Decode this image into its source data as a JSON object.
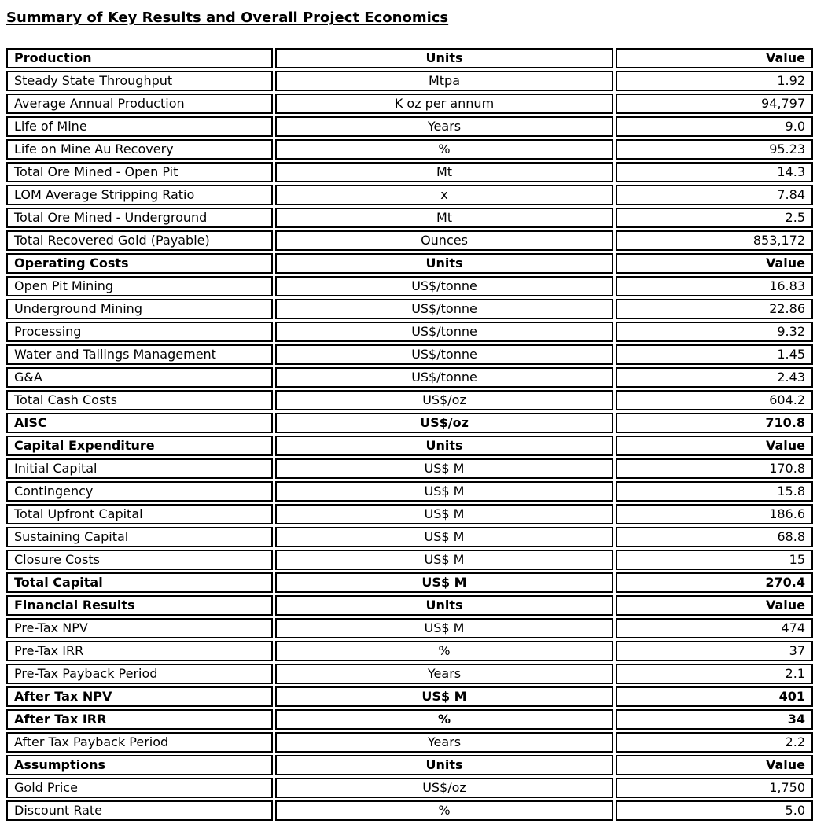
{
  "page": {
    "title": "Summary of Key Results and Overall Project Economics"
  },
  "colors": {
    "text": "#000000",
    "background": "#ffffff",
    "border": "#000000"
  },
  "table": {
    "columns": [
      "label",
      "units",
      "value"
    ],
    "rows": [
      {
        "label": "Production",
        "units": "Units",
        "value": "Value",
        "style": "section"
      },
      {
        "label": "Steady State Throughput",
        "units": "Mtpa",
        "value": "1.92",
        "style": "normal"
      },
      {
        "label": "Average Annual Production",
        "units": "K oz per annum",
        "value": "94,797",
        "style": "normal"
      },
      {
        "label": "Life of Mine",
        "units": "Years",
        "value": "9.0",
        "style": "normal"
      },
      {
        "label": "Life on Mine Au Recovery",
        "units": "%",
        "value": "95.23",
        "style": "normal"
      },
      {
        "label": "Total Ore Mined - Open Pit",
        "units": "Mt",
        "value": "14.3",
        "style": "normal"
      },
      {
        "label": "LOM Average Stripping Ratio",
        "units": "x",
        "value": "7.84",
        "style": "normal"
      },
      {
        "label": "Total Ore Mined - Underground",
        "units": "Mt",
        "value": "2.5",
        "style": "normal"
      },
      {
        "label": "Total Recovered Gold (Payable)",
        "units": "Ounces",
        "value": "853,172",
        "style": "normal"
      },
      {
        "label": "Operating Costs",
        "units": "Units",
        "value": "Value",
        "style": "section"
      },
      {
        "label": "Open Pit Mining",
        "units": "US$/tonne",
        "value": "16.83",
        "style": "normal"
      },
      {
        "label": "Underground Mining",
        "units": "US$/tonne",
        "value": "22.86",
        "style": "normal"
      },
      {
        "label": "Processing",
        "units": "US$/tonne",
        "value": "9.32",
        "style": "normal"
      },
      {
        "label": "Water and Tailings Management",
        "units": "US$/tonne",
        "value": "1.45",
        "style": "normal"
      },
      {
        "label": "G&A",
        "units": "US$/tonne",
        "value": "2.43",
        "style": "normal"
      },
      {
        "label": "Total Cash Costs",
        "units": "US$/oz",
        "value": "604.2",
        "style": "normal"
      },
      {
        "label": "AISC",
        "units": "US$/oz",
        "value": "710.8",
        "style": "bold"
      },
      {
        "label": "Capital Expenditure",
        "units": "Units",
        "value": "Value",
        "style": "section"
      },
      {
        "label": "Initial Capital",
        "units": "US$ M",
        "value": "170.8",
        "style": "normal"
      },
      {
        "label": "Contingency",
        "units": "US$ M",
        "value": "15.8",
        "style": "normal"
      },
      {
        "label": "Total Upfront Capital",
        "units": "US$ M",
        "value": "186.6",
        "style": "normal"
      },
      {
        "label": "Sustaining Capital",
        "units": "US$ M",
        "value": "68.8",
        "style": "normal"
      },
      {
        "label": "Closure Costs",
        "units": "US$ M",
        "value": "15",
        "style": "normal"
      },
      {
        "label": "Total Capital",
        "units": "US$ M",
        "value": "270.4",
        "style": "bold"
      },
      {
        "label": "Financial Results",
        "units": "Units",
        "value": "Value",
        "style": "section"
      },
      {
        "label": "Pre-Tax NPV",
        "units": "US$ M",
        "value": "474",
        "style": "normal"
      },
      {
        "label": "Pre-Tax IRR",
        "units": "%",
        "value": "37",
        "style": "normal"
      },
      {
        "label": "Pre-Tax Payback Period",
        "units": "Years",
        "value": "2.1",
        "style": "normal"
      },
      {
        "label": "After Tax NPV",
        "units": "US$ M",
        "value": "401",
        "style": "bold"
      },
      {
        "label": "After Tax IRR",
        "units": "%",
        "value": "34",
        "style": "bold"
      },
      {
        "label": "After Tax Payback Period",
        "units": "Years",
        "value": "2.2",
        "style": "normal"
      },
      {
        "label": "Assumptions",
        "units": "Units",
        "value": "Value",
        "style": "section"
      },
      {
        "label": "Gold Price",
        "units": "US$/oz",
        "value": "1,750",
        "style": "normal"
      },
      {
        "label": "Discount Rate",
        "units": "%",
        "value": "5.0",
        "style": "normal"
      }
    ]
  }
}
